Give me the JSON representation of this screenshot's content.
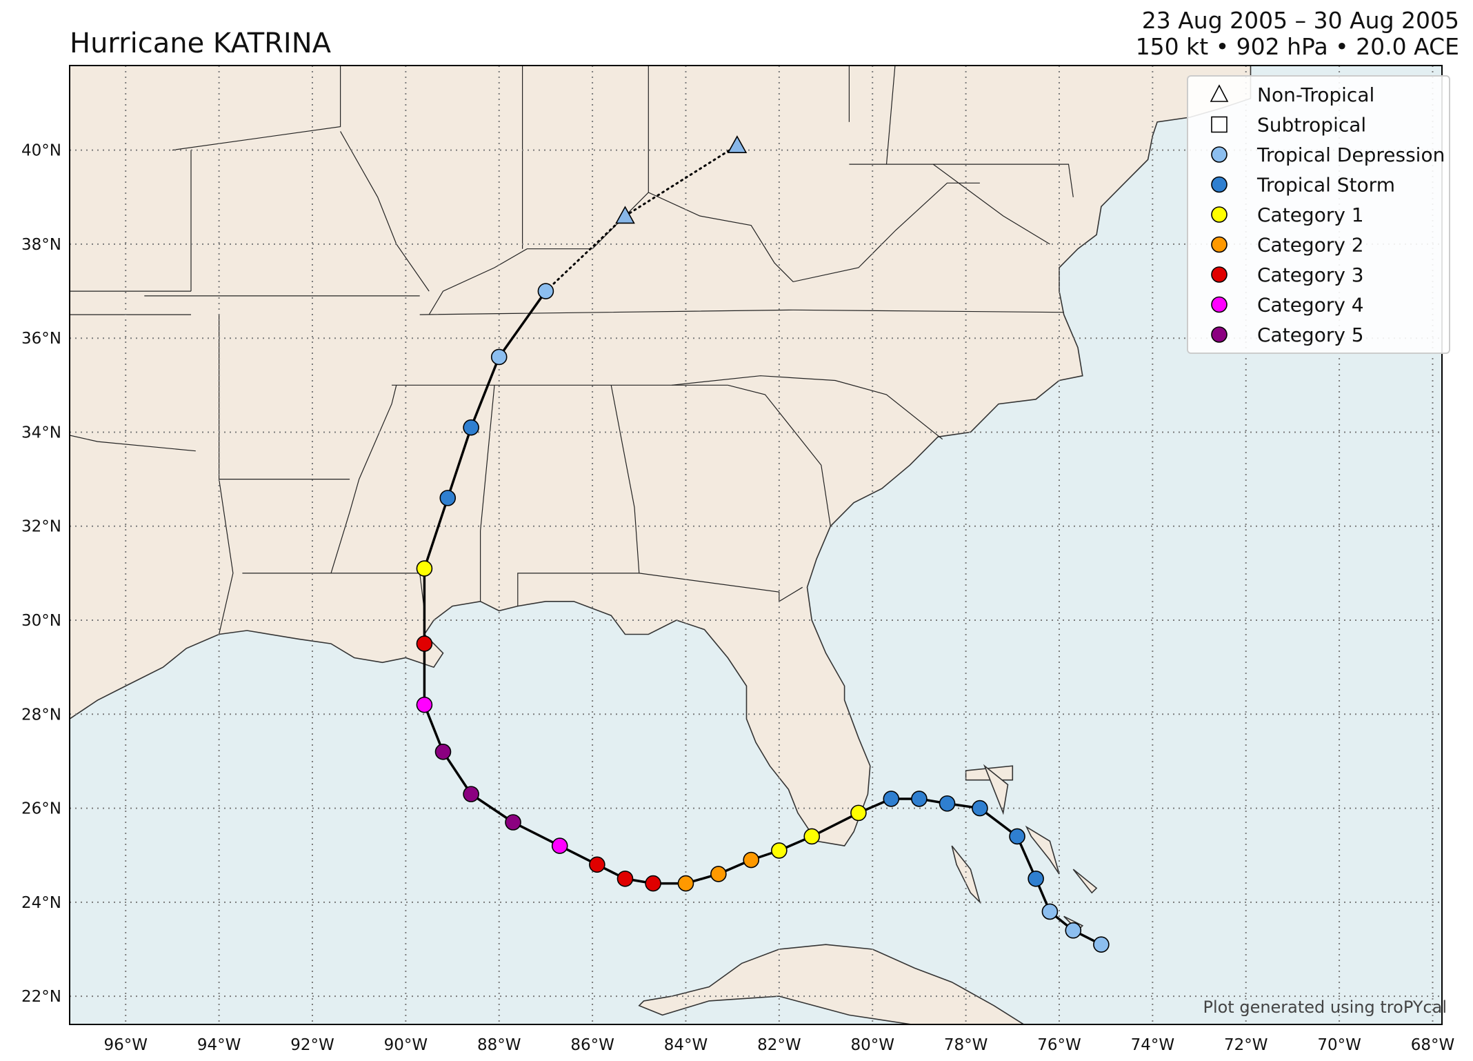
{
  "header": {
    "title": "Hurricane KATRINA",
    "date_range": "23 Aug 2005 – 30 Aug 2005",
    "stats": "150 kt • 902 hPa • 20.0 ACE"
  },
  "credit": "Plot generated using troPYcal",
  "colors": {
    "land": "#f3eadf",
    "ocean": "#e3eff2",
    "grid": "#7a7a7a",
    "track": "#000000",
    "Non-Tropical": "#88b7e8",
    "Subtropical": "#ffffff",
    "Tropical Depression": "#8cbeef",
    "Tropical Storm": "#2f7fd0",
    "Category 1": "#ffff00",
    "Category 2": "#ff9900",
    "Category 3": "#e00000",
    "Category 4": "#ff00ff",
    "Category 5": "#8b0080"
  },
  "legend": [
    {
      "label": "Non-Tropical",
      "marker": "triangle"
    },
    {
      "label": "Subtropical",
      "marker": "square"
    },
    {
      "label": "Tropical Depression",
      "marker": "circle"
    },
    {
      "label": "Tropical Storm",
      "marker": "circle"
    },
    {
      "label": "Category 1",
      "marker": "circle"
    },
    {
      "label": "Category 2",
      "marker": "circle"
    },
    {
      "label": "Category 3",
      "marker": "circle"
    },
    {
      "label": "Category 4",
      "marker": "circle"
    },
    {
      "label": "Category 5",
      "marker": "circle"
    }
  ],
  "chart_data": {
    "type": "map-track",
    "extent": {
      "lon": [
        -97.2,
        -67.8
      ],
      "lat": [
        21.4,
        41.8
      ]
    },
    "lon_ticks": [
      {
        "value": -96,
        "label": "96°W"
      },
      {
        "value": -94,
        "label": "94°W"
      },
      {
        "value": -92,
        "label": "92°W"
      },
      {
        "value": -90,
        "label": "90°W"
      },
      {
        "value": -88,
        "label": "88°W"
      },
      {
        "value": -86,
        "label": "86°W"
      },
      {
        "value": -84,
        "label": "84°W"
      },
      {
        "value": -82,
        "label": "82°W"
      },
      {
        "value": -80,
        "label": "80°W"
      },
      {
        "value": -78,
        "label": "78°W"
      },
      {
        "value": -76,
        "label": "76°W"
      },
      {
        "value": -74,
        "label": "74°W"
      },
      {
        "value": -72,
        "label": "72°W"
      },
      {
        "value": -70,
        "label": "70°W"
      },
      {
        "value": -68,
        "label": "68°W"
      }
    ],
    "lat_ticks": [
      {
        "value": 22,
        "label": "22°N"
      },
      {
        "value": 24,
        "label": "24°N"
      },
      {
        "value": 26,
        "label": "26°N"
      },
      {
        "value": 28,
        "label": "28°N"
      },
      {
        "value": 30,
        "label": "30°N"
      },
      {
        "value": 32,
        "label": "32°N"
      },
      {
        "value": 34,
        "label": "34°N"
      },
      {
        "value": 36,
        "label": "36°N"
      },
      {
        "value": 38,
        "label": "38°N"
      },
      {
        "value": 40,
        "label": "40°N"
      }
    ],
    "track": [
      {
        "lon": -75.1,
        "lat": 23.1,
        "category": "Tropical Depression"
      },
      {
        "lon": -75.7,
        "lat": 23.4,
        "category": "Tropical Depression"
      },
      {
        "lon": -76.2,
        "lat": 23.8,
        "category": "Tropical Depression"
      },
      {
        "lon": -76.5,
        "lat": 24.5,
        "category": "Tropical Storm"
      },
      {
        "lon": -76.9,
        "lat": 25.4,
        "category": "Tropical Storm"
      },
      {
        "lon": -77.7,
        "lat": 26.0,
        "category": "Tropical Storm"
      },
      {
        "lon": -78.4,
        "lat": 26.1,
        "category": "Tropical Storm"
      },
      {
        "lon": -79.0,
        "lat": 26.2,
        "category": "Tropical Storm"
      },
      {
        "lon": -79.6,
        "lat": 26.2,
        "category": "Tropical Storm"
      },
      {
        "lon": -80.3,
        "lat": 25.9,
        "category": "Category 1"
      },
      {
        "lon": -81.3,
        "lat": 25.4,
        "category": "Category 1"
      },
      {
        "lon": -82.0,
        "lat": 25.1,
        "category": "Category 1"
      },
      {
        "lon": -82.6,
        "lat": 24.9,
        "category": "Category 2"
      },
      {
        "lon": -83.3,
        "lat": 24.6,
        "category": "Category 2"
      },
      {
        "lon": -84.0,
        "lat": 24.4,
        "category": "Category 2"
      },
      {
        "lon": -84.7,
        "lat": 24.4,
        "category": "Category 3"
      },
      {
        "lon": -85.3,
        "lat": 24.5,
        "category": "Category 3"
      },
      {
        "lon": -85.9,
        "lat": 24.8,
        "category": "Category 3"
      },
      {
        "lon": -86.7,
        "lat": 25.2,
        "category": "Category 4"
      },
      {
        "lon": -87.7,
        "lat": 25.7,
        "category": "Category 5"
      },
      {
        "lon": -88.6,
        "lat": 26.3,
        "category": "Category 5"
      },
      {
        "lon": -89.2,
        "lat": 27.2,
        "category": "Category 5"
      },
      {
        "lon": -89.6,
        "lat": 28.2,
        "category": "Category 4"
      },
      {
        "lon": -89.6,
        "lat": 29.5,
        "category": "Category 3"
      },
      {
        "lon": -89.6,
        "lat": 31.1,
        "category": "Category 1"
      },
      {
        "lon": -89.1,
        "lat": 32.6,
        "category": "Tropical Storm"
      },
      {
        "lon": -88.6,
        "lat": 34.1,
        "category": "Tropical Storm"
      },
      {
        "lon": -88.0,
        "lat": 35.6,
        "category": "Tropical Depression"
      },
      {
        "lon": -87.0,
        "lat": 37.0,
        "category": "Tropical Depression"
      },
      {
        "lon": -85.3,
        "lat": 38.6,
        "category": "Non-Tropical"
      },
      {
        "lon": -82.9,
        "lat": 40.1,
        "category": "Non-Tropical"
      }
    ]
  }
}
